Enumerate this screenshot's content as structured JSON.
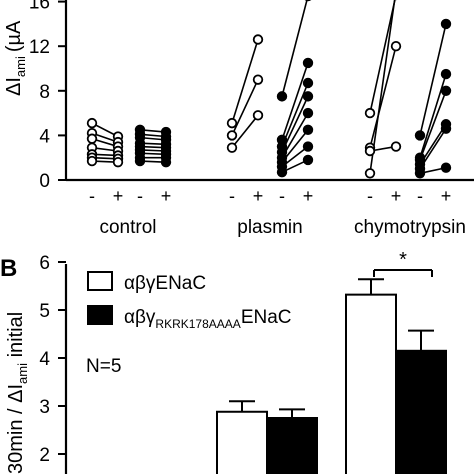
{
  "panels": {
    "b_label": "B"
  },
  "chart_data": [
    {
      "type": "scatter",
      "ylabel_main": "ΔI",
      "ylabel_sub": "ami",
      "ylabel_unit": "(µA",
      "ylim": [
        0,
        17
      ],
      "yticks": [
        "0",
        "4",
        "8",
        "12",
        "16"
      ],
      "ytick_values": [
        0,
        4,
        8,
        12,
        16
      ],
      "pair_labels": [
        "-",
        "+"
      ],
      "groups": [
        {
          "label": "control",
          "subgroups": [
            {
              "marker": "open",
              "before": [
                5.1,
                4.2,
                3.7,
                2.9,
                2.3,
                2.0,
                1.7
              ],
              "after": [
                3.9,
                3.4,
                3.0,
                2.6,
                2.2,
                1.9,
                1.6
              ]
            },
            {
              "marker": "filled",
              "before": [
                4.5,
                4.1,
                3.8,
                3.3,
                3.0,
                2.7,
                2.4,
                2.0,
                1.7
              ],
              "after": [
                4.3,
                3.9,
                3.6,
                3.2,
                2.9,
                2.6,
                2.3,
                2.0,
                1.6
              ]
            }
          ]
        },
        {
          "label": "plasmin",
          "subgroups": [
            {
              "marker": "open",
              "before": [
                5.1,
                4.0,
                2.9
              ],
              "after": [
                12.6,
                9.0,
                5.8
              ]
            },
            {
              "marker": "filled",
              "before": [
                7.5,
                3.6,
                3.0,
                2.5,
                2.0,
                1.6,
                1.2,
                0.7
              ],
              "after": [
                16.5,
                10.5,
                8.7,
                7.5,
                6.0,
                4.5,
                3.0,
                1.8
              ]
            }
          ]
        },
        {
          "label": "chymotrypsin",
          "subgroups": [
            {
              "marker": "open",
              "before": [
                6.0,
                2.9,
                2.6,
                0.6
              ],
              "after": [
                16.6,
                12.0,
                3.0,
                17.0
              ]
            },
            {
              "marker": "filled",
              "before": [
                4.0,
                2.0,
                1.8,
                1.4,
                1.0,
                0.6
              ],
              "after": [
                14.0,
                9.5,
                8.0,
                5.0,
                4.6,
                1.1
              ]
            }
          ]
        }
      ]
    },
    {
      "type": "bar",
      "panel_label": "B",
      "ylabel": "30min / ΔI",
      "ylabel_sub": "ami",
      "ylabel_tail": " initial",
      "ylim": [
        2,
        6
      ],
      "yticks": [
        "2",
        "3",
        "4",
        "5",
        "6"
      ],
      "ytick_values": [
        2,
        3,
        4,
        5,
        6
      ],
      "n_label": "N=5",
      "significance": "*",
      "legend": [
        {
          "text": "αβγENaC",
          "color": "#ffffff"
        },
        {
          "text": "αβγ",
          "sub": "RKRK178AAAA",
          "tail": "ENaC",
          "color": "#000000"
        }
      ],
      "series": [
        {
          "values": [
            2.88,
            5.32
          ],
          "errors": [
            0.22,
            0.32
          ],
          "color": "#ffffff"
        },
        {
          "values": [
            2.75,
            4.15
          ],
          "errors": [
            0.18,
            0.42
          ],
          "color": "#000000"
        }
      ]
    }
  ]
}
